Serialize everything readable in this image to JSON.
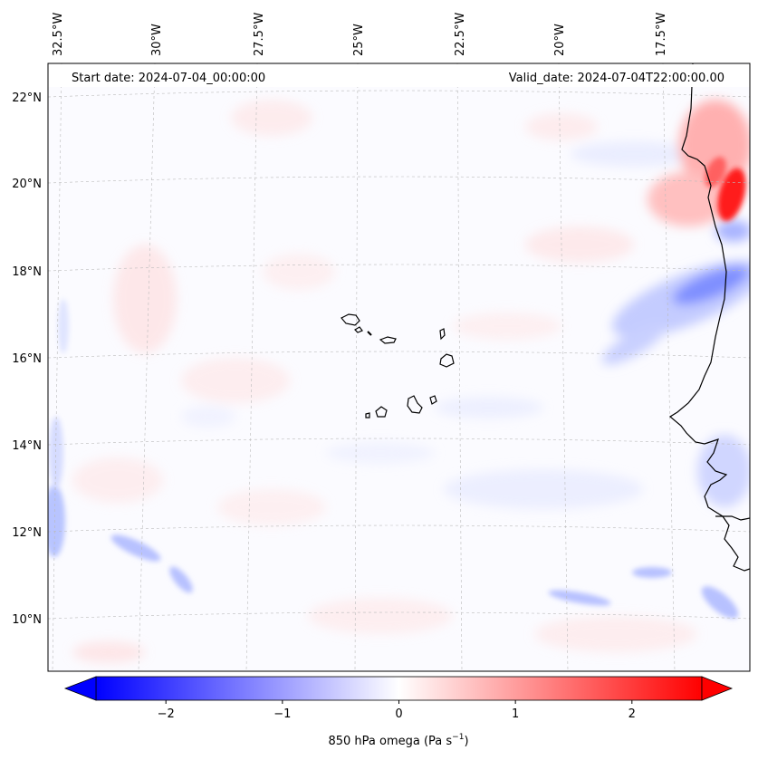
{
  "header": {
    "start_date": "Start date: 2024-07-04_00:00:00",
    "valid_date": "Valid_date: 2024-07-04T22:00:00.00"
  },
  "longitude_labels": [
    "32.5°W",
    "30°W",
    "27.5°W",
    "25°W",
    "22.5°W",
    "20°W",
    "17.5°W"
  ],
  "latitude_labels": [
    "22°N",
    "20°N",
    "18°N",
    "16°N",
    "14°N",
    "12°N",
    "10°N"
  ],
  "colorbar": {
    "ticks": [
      "−2",
      "−1",
      "0",
      "1",
      "2"
    ],
    "tick_values": [
      -2,
      -1,
      0,
      1,
      2
    ],
    "range": [
      -2.6,
      2.6
    ],
    "label_text": "850 hPa omega (Pa s",
    "label_exp": "−1",
    "label_close": ")",
    "neg_color": "#0000ff",
    "zero_color": "#ffffff",
    "pos_color": "#ff0000"
  },
  "chart_data": {
    "type": "heatmap",
    "title": "",
    "variable": "850 hPa omega",
    "units": "Pa s^-1",
    "lon_range": [
      -33,
      -15
    ],
    "lat_range": [
      9,
      23
    ],
    "colormap": "bwr",
    "vmin": -2.6,
    "vmax": 2.6,
    "features": [
      {
        "name": "strong ascent band near African coast",
        "lat": 17.5,
        "lon": -16.2,
        "value": -0.9
      },
      {
        "name": "strong descent near Mauritanian coast",
        "lat": 19.8,
        "lon": -16.4,
        "value": 2.4
      },
      {
        "name": "weak ascent band",
        "lat": 15.8,
        "lon": -17.5,
        "value": -0.5
      },
      {
        "name": "weak ascent western edge",
        "lat": 12.3,
        "lon": -33,
        "value": -0.6
      },
      {
        "name": "scattered ascent streaks south",
        "lat": 10.6,
        "lon": -19.5,
        "value": -0.6
      }
    ]
  }
}
